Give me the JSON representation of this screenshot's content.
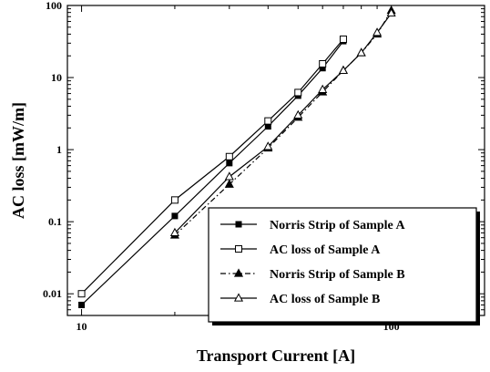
{
  "chart_data": {
    "type": "line",
    "title": "",
    "xlabel": "Transport Current [A]",
    "ylabel": "AC loss [mW/m]",
    "xscale": "log",
    "yscale": "log",
    "xlim": [
      9,
      200
    ],
    "ylim": [
      0.005,
      100
    ],
    "x_ticks": [
      {
        "value": 10,
        "label": "10"
      },
      {
        "value": 100,
        "label": "100"
      }
    ],
    "y_ticks": [
      {
        "value": 0.01,
        "label": "0.01"
      },
      {
        "value": 0.1,
        "label": "0.1"
      },
      {
        "value": 1,
        "label": "1"
      },
      {
        "value": 10,
        "label": "10"
      },
      {
        "value": 100,
        "label": "100"
      }
    ],
    "grid": false,
    "legend_position": "bottom-right",
    "colors": {
      "line": "#000000",
      "background": "#ffffff"
    },
    "series": [
      {
        "name": "Norris Strip of Sample A",
        "marker": "filled-square",
        "line_style": "solid",
        "x": [
          10,
          20,
          30,
          40,
          50,
          60,
          70
        ],
        "y": [
          0.007,
          0.12,
          0.65,
          2.1,
          5.6,
          13.5,
          32
        ]
      },
      {
        "name": "AC loss of Sample A",
        "marker": "open-square",
        "line_style": "solid",
        "x": [
          10,
          20,
          30,
          40,
          50,
          60,
          70
        ],
        "y": [
          0.01,
          0.2,
          0.8,
          2.5,
          6.2,
          15.5,
          34
        ]
      },
      {
        "name": "Norris Strip of Sample B",
        "marker": "filled-triangle",
        "line_style": "dash-dot",
        "x": [
          20,
          30,
          40,
          50,
          60,
          70,
          80,
          90,
          100
        ],
        "y": [
          0.065,
          0.33,
          1.05,
          2.8,
          6.3,
          12.5,
          22,
          40,
          85
        ]
      },
      {
        "name": "AC loss of Sample B",
        "marker": "open-triangle",
        "line_style": "solid",
        "x": [
          20,
          30,
          40,
          50,
          60,
          70,
          80,
          90,
          100
        ],
        "y": [
          0.07,
          0.42,
          1.1,
          3.0,
          6.8,
          12.5,
          22,
          42,
          78
        ]
      }
    ]
  }
}
